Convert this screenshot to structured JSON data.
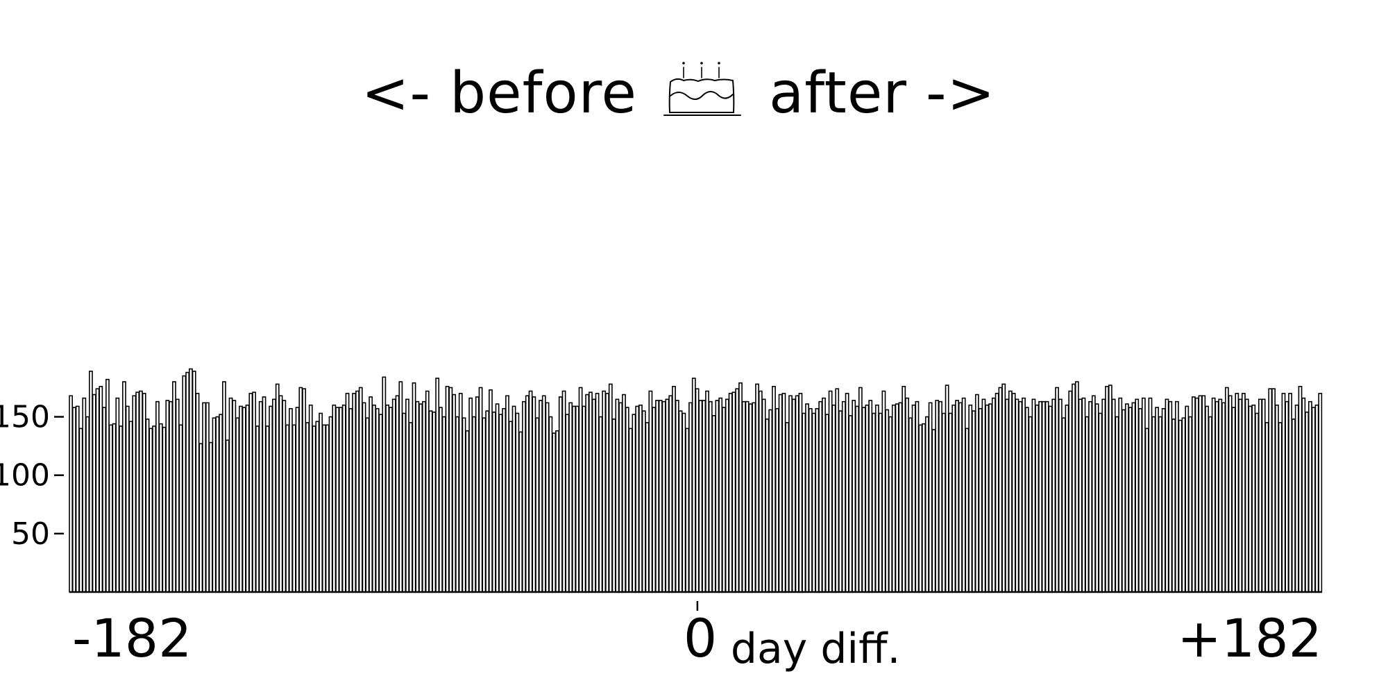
{
  "chart_data": {
    "type": "bar",
    "title_left": "<- before",
    "title_right": "after ->",
    "title_icon": "birthday-cake-icon",
    "xlabel": "day diff.",
    "x_tick_labels": {
      "min": "-182",
      "zero": "0",
      "max": "+182"
    },
    "x_range": [
      -182,
      182
    ],
    "ylim": [
      0,
      200
    ],
    "y_ticks": [
      50,
      100,
      150
    ],
    "y_tick_labels": [
      "50",
      "100",
      "150"
    ],
    "grid": false,
    "values": [
      168,
      158,
      159,
      140,
      166,
      150,
      189,
      169,
      174,
      176,
      158,
      182,
      143,
      144,
      166,
      142,
      180,
      159,
      146,
      168,
      171,
      172,
      170,
      148,
      140,
      142,
      163,
      144,
      141,
      164,
      163,
      180,
      165,
      143,
      185,
      188,
      191,
      189,
      170,
      127,
      162,
      162,
      128,
      149,
      150,
      152,
      180,
      130,
      166,
      164,
      149,
      159,
      158,
      160,
      170,
      171,
      142,
      163,
      167,
      142,
      159,
      165,
      178,
      168,
      164,
      143,
      157,
      143,
      158,
      175,
      174,
      145,
      160,
      142,
      146,
      153,
      143,
      143,
      150,
      160,
      158,
      158,
      160,
      170,
      157,
      170,
      172,
      175,
      162,
      149,
      167,
      160,
      157,
      152,
      184,
      160,
      158,
      165,
      168,
      180,
      153,
      165,
      145,
      179,
      163,
      161,
      163,
      172,
      155,
      154,
      183,
      158,
      150,
      176,
      175,
      169,
      150,
      170,
      149,
      138,
      166,
      150,
      167,
      175,
      149,
      155,
      173,
      154,
      161,
      152,
      157,
      168,
      146,
      159,
      153,
      137,
      163,
      168,
      172,
      167,
      149,
      164,
      168,
      162,
      150,
      136,
      138,
      167,
      172,
      152,
      162,
      159,
      159,
      175,
      159,
      169,
      171,
      165,
      170,
      150,
      172,
      170,
      178,
      148,
      165,
      162,
      169,
      158,
      140,
      152,
      159,
      160,
      155,
      145,
      172,
      158,
      164,
      164,
      163,
      165,
      168,
      176,
      164,
      155,
      153,
      140,
      162,
      183,
      174,
      164,
      164,
      172,
      163,
      151,
      164,
      166,
      158,
      165,
      170,
      171,
      174,
      179,
      163,
      163,
      161,
      162,
      178,
      172,
      165,
      148,
      156,
      176,
      157,
      169,
      170,
      145,
      168,
      165,
      168,
      170,
      153,
      161,
      157,
      153,
      157,
      163,
      166,
      152,
      172,
      160,
      174,
      155,
      163,
      170,
      151,
      164,
      159,
      175,
      158,
      160,
      164,
      153,
      160,
      153,
      172,
      156,
      150,
      160,
      161,
      162,
      176,
      166,
      149,
      160,
      163,
      143,
      144,
      150,
      162,
      139,
      164,
      163,
      153,
      177,
      153,
      160,
      164,
      162,
      166,
      140,
      160,
      155,
      169,
      157,
      165,
      160,
      161,
      166,
      170,
      175,
      178,
      165,
      172,
      170,
      165,
      163,
      166,
      158,
      150,
      165,
      160,
      163,
      163,
      163,
      159,
      165,
      175,
      165,
      149,
      160,
      172,
      178,
      180,
      165,
      166,
      150,
      163,
      168,
      161,
      153,
      165,
      176,
      177,
      165,
      150,
      166,
      156,
      161,
      158,
      162,
      165,
      157,
      166,
      140,
      166,
      150,
      158,
      150,
      157,
      165,
      163,
      148,
      163,
      147,
      149,
      159,
      150,
      167,
      166,
      168,
      168,
      159,
      150,
      166,
      163,
      165,
      162,
      175,
      168,
      158,
      170,
      165,
      170,
      165,
      159,
      160,
      153,
      165,
      165,
      145,
      174,
      174,
      160,
      145,
      170,
      163,
      170,
      148,
      160,
      176,
      166,
      154,
      163,
      158,
      160,
      170
    ]
  }
}
